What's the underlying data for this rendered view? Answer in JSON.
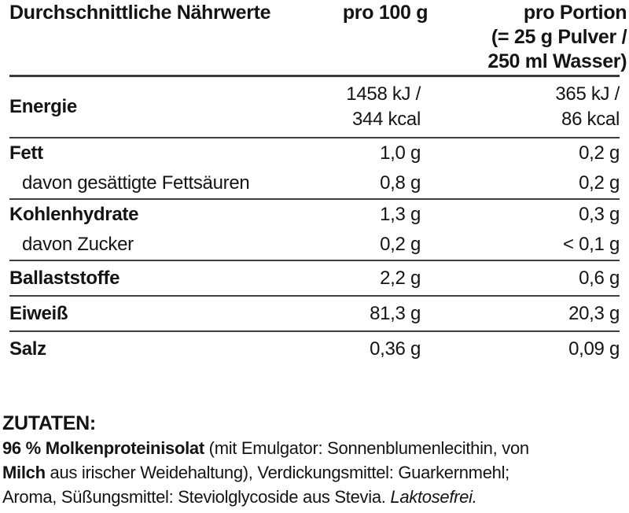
{
  "colors": {
    "background": "#ffffff",
    "text": "#141414",
    "rule_thick": "#3a3a3a",
    "rule_thin": "#3f3f3f"
  },
  "table": {
    "header": {
      "col1": "Durchschnittliche Nährwerte",
      "col2": "pro 100 g",
      "col3": [
        "pro Portion",
        "(= 25 g Pulver /",
        "250 ml Wasser)"
      ]
    },
    "rows": [
      {
        "label": "Energie",
        "per100": [
          "1458 kJ /",
          "344 kcal"
        ],
        "portion": [
          "365 kJ /",
          "86 kcal"
        ]
      },
      {
        "label": "Fett",
        "per100": [
          "1,0 g"
        ],
        "portion": [
          "0,2 g"
        ]
      },
      {
        "label": "davon gesättigte Fettsäuren",
        "per100": [
          "0,8 g"
        ],
        "portion": [
          "0,2 g"
        ]
      },
      {
        "label": "Kohlenhydrate",
        "per100": [
          "1,3 g"
        ],
        "portion": [
          "0,3 g"
        ]
      },
      {
        "label": "davon Zucker",
        "per100": [
          "0,2 g"
        ],
        "portion": [
          "< 0,1 g"
        ]
      },
      {
        "label": "Ballaststoffe",
        "per100": [
          "2,2 g"
        ],
        "portion": [
          "0,6 g"
        ]
      },
      {
        "label": "Eiweiß",
        "per100": [
          "81,3 g"
        ],
        "portion": [
          "20,3 g"
        ]
      },
      {
        "label": "Salz",
        "per100": [
          "0,36 g"
        ],
        "portion": [
          "0,09 g"
        ]
      }
    ]
  },
  "ingredients": {
    "heading": "ZUTATEN:",
    "line1": {
      "bold": "96 % Molkenproteinisolat",
      "rest": " (mit Emulgator: Sonnenblumenlecithin, von"
    },
    "line2": {
      "bold": "Milch",
      "rest": " aus irischer Weidehaltung), Verdickungsmittel: Guarkernmehl;"
    },
    "line3": {
      "rest": "Aroma, Süßungsmittel: Steviolglycoside aus Stevia. ",
      "italic": "Laktosefrei."
    }
  }
}
